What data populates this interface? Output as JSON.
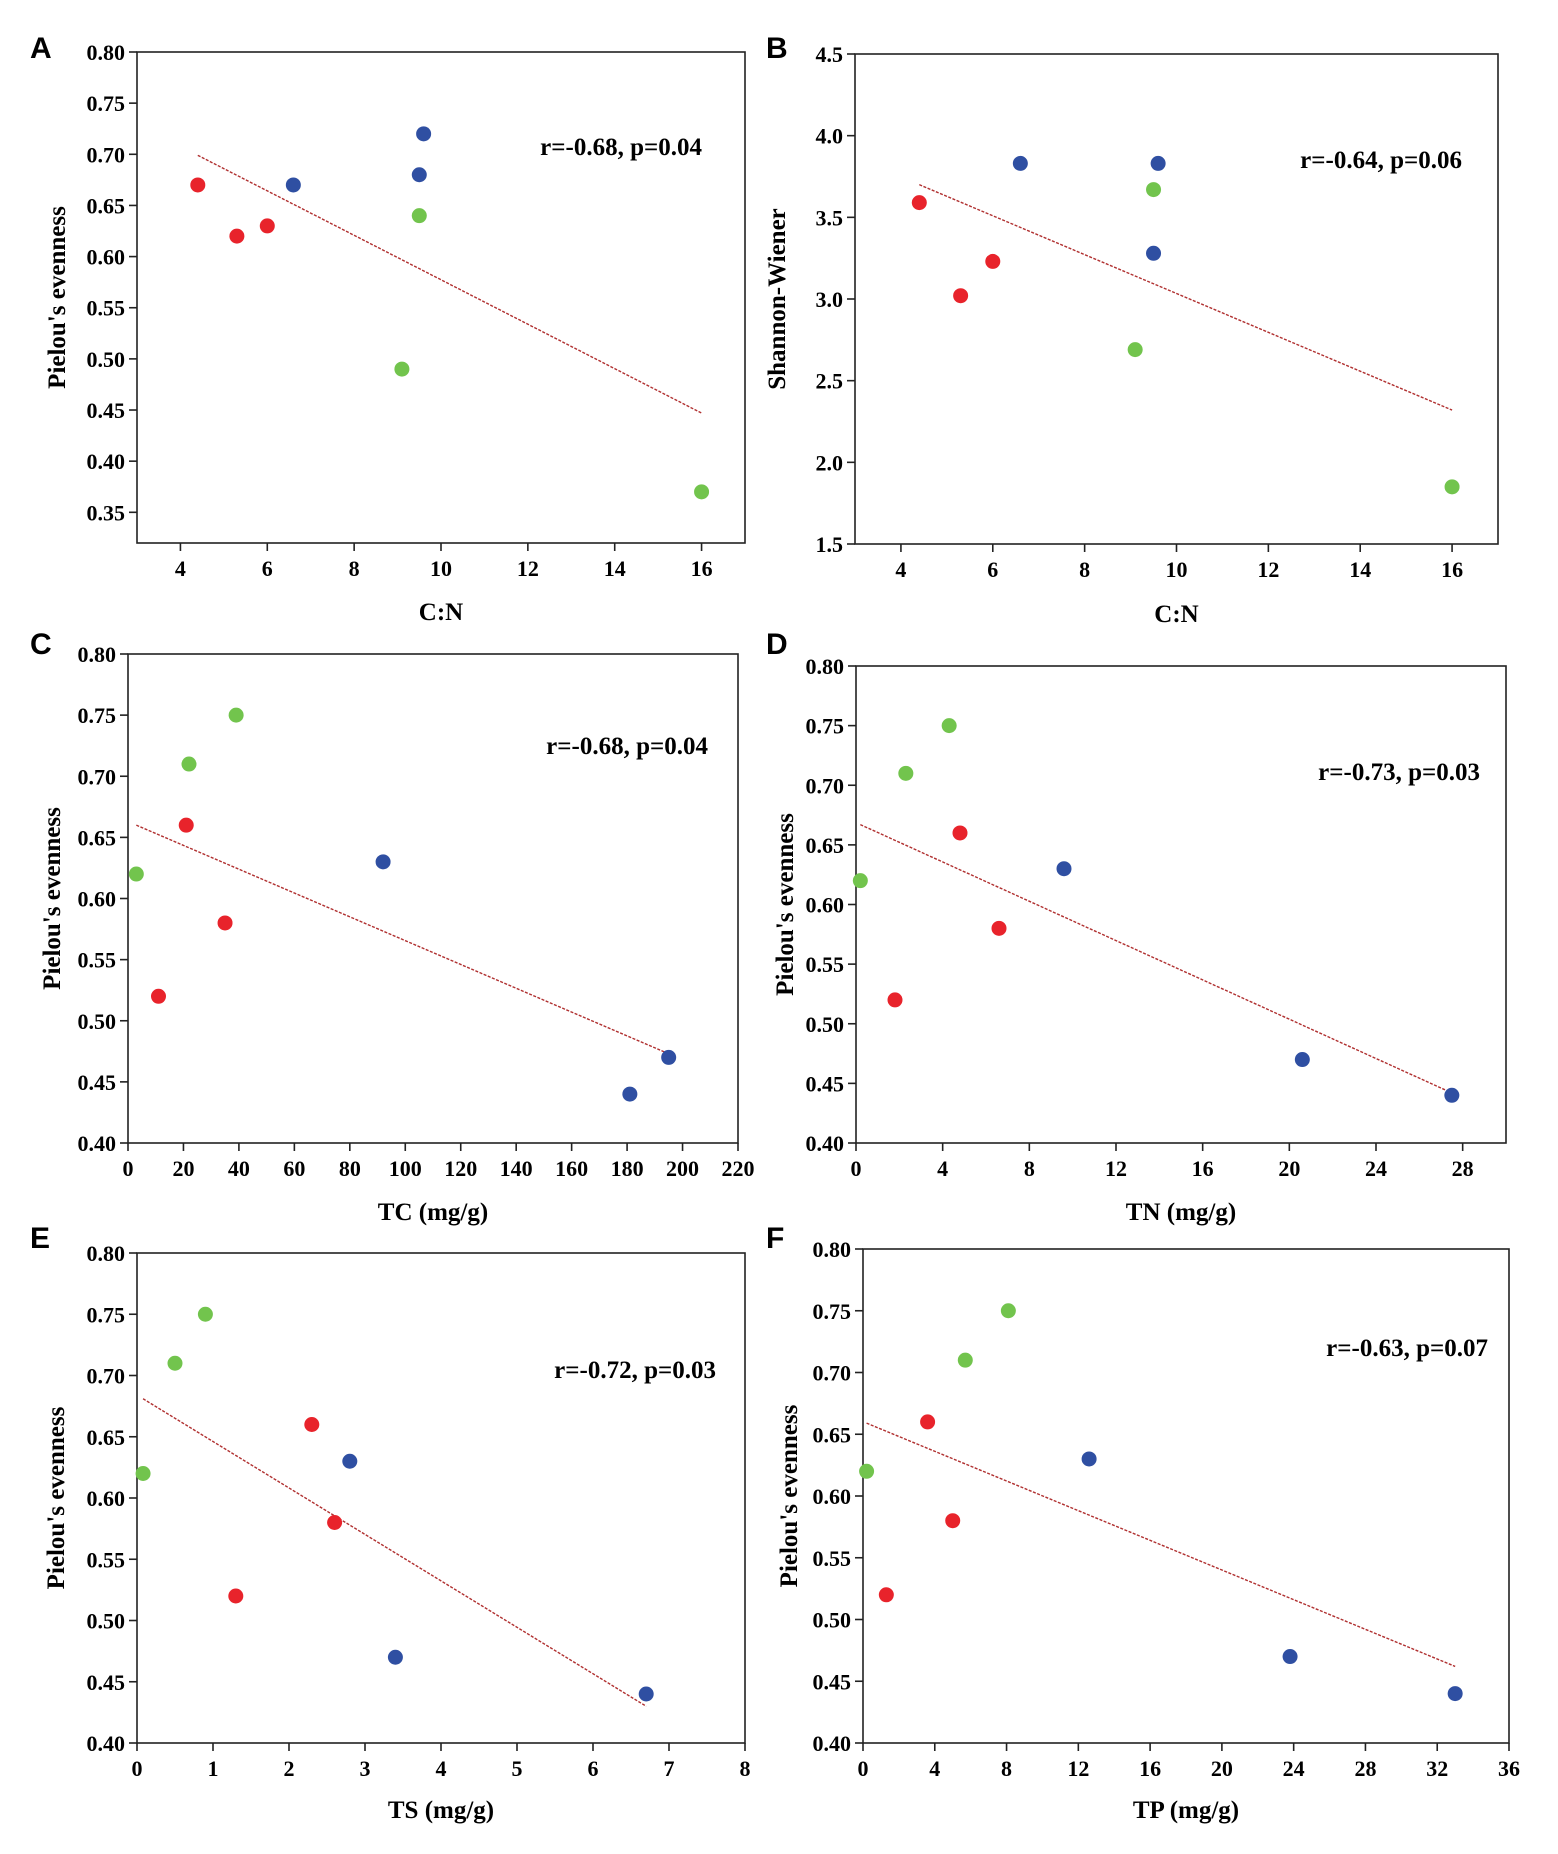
{
  "colors": {
    "red": "#e8232b",
    "blue": "#2f4fa2",
    "green": "#72c44d",
    "fit": "#b03030"
  },
  "chart_data": [
    {
      "panel": "A",
      "type": "scatter",
      "xlabel": "C:N",
      "ylabel": "Pielou's evenness",
      "xlim": [
        3,
        17
      ],
      "ylim": [
        0.32,
        0.8
      ],
      "xticks": [
        4,
        6,
        8,
        10,
        12,
        14,
        16
      ],
      "xtick_labels": [
        "4",
        "6",
        "8",
        "10",
        "12",
        "14",
        "16"
      ],
      "yticks": [
        0.35,
        0.4,
        0.45,
        0.5,
        0.55,
        0.6,
        0.65,
        0.7,
        0.75,
        0.8
      ],
      "ytick_labels": [
        "0.35",
        "0.40",
        "0.45",
        "0.50",
        "0.55",
        "0.60",
        "0.65",
        "0.70",
        "0.75",
        "0.80"
      ],
      "stat": "r=-0.68, p=0.04",
      "fit": [
        [
          4.4,
          0.699
        ],
        [
          16,
          0.447
        ]
      ],
      "series": [
        {
          "name": "red",
          "color": "red",
          "points": [
            [
              4.4,
              0.67
            ],
            [
              5.3,
              0.62
            ],
            [
              6.0,
              0.63
            ]
          ]
        },
        {
          "name": "blue",
          "color": "blue",
          "points": [
            [
              6.6,
              0.67
            ],
            [
              9.5,
              0.68
            ],
            [
              9.6,
              0.72
            ]
          ]
        },
        {
          "name": "green",
          "color": "green",
          "points": [
            [
              9.1,
              0.49
            ],
            [
              9.5,
              0.64
            ],
            [
              16.0,
              0.37
            ]
          ]
        }
      ]
    },
    {
      "panel": "B",
      "type": "scatter",
      "xlabel": "C:N",
      "ylabel": "Shannon-Wiener",
      "xlim": [
        3,
        17
      ],
      "ylim": [
        1.5,
        4.5
      ],
      "xticks": [
        4,
        6,
        8,
        10,
        12,
        14,
        16
      ],
      "xtick_labels": [
        "4",
        "6",
        "8",
        "10",
        "12",
        "14",
        "16"
      ],
      "yticks": [
        1.5,
        2.0,
        2.5,
        3.0,
        3.5,
        4.0,
        4.5
      ],
      "ytick_labels": [
        "1.5",
        "2.0",
        "2.5",
        "3.0",
        "3.5",
        "4.0",
        "4.5"
      ],
      "stat": "r=-0.64, p=0.06",
      "fit": [
        [
          4.4,
          3.7
        ],
        [
          16,
          2.32
        ]
      ],
      "series": [
        {
          "name": "red",
          "color": "red",
          "points": [
            [
              4.4,
              3.59
            ],
            [
              5.3,
              3.02
            ],
            [
              6.0,
              3.23
            ]
          ]
        },
        {
          "name": "blue",
          "color": "blue",
          "points": [
            [
              6.6,
              3.83
            ],
            [
              9.5,
              3.28
            ],
            [
              9.6,
              3.83
            ]
          ]
        },
        {
          "name": "green",
          "color": "green",
          "points": [
            [
              9.1,
              2.69
            ],
            [
              9.5,
              3.67
            ],
            [
              16.0,
              1.85
            ]
          ]
        }
      ]
    },
    {
      "panel": "C",
      "type": "scatter",
      "xlabel": "TC (mg/g)",
      "ylabel": "Pielou's evenness",
      "xlim": [
        0,
        220
      ],
      "ylim": [
        0.4,
        0.8
      ],
      "xticks": [
        0,
        20,
        40,
        60,
        80,
        100,
        120,
        140,
        160,
        180,
        200,
        220
      ],
      "xtick_labels": [
        "0",
        "20",
        "40",
        "60",
        "80",
        "100",
        "120",
        "140",
        "160",
        "180",
        "200",
        "220"
      ],
      "yticks": [
        0.4,
        0.45,
        0.5,
        0.55,
        0.6,
        0.65,
        0.7,
        0.75,
        0.8
      ],
      "ytick_labels": [
        "0.40",
        "0.45",
        "0.50",
        "0.55",
        "0.60",
        "0.65",
        "0.70",
        "0.75",
        "0.80"
      ],
      "stat": "r=-0.68, p=0.04",
      "fit": [
        [
          3,
          0.66
        ],
        [
          195,
          0.473
        ]
      ],
      "series": [
        {
          "name": "red",
          "color": "red",
          "points": [
            [
              11,
              0.52
            ],
            [
              21,
              0.66
            ],
            [
              35,
              0.58
            ]
          ]
        },
        {
          "name": "blue",
          "color": "blue",
          "points": [
            [
              92,
              0.63
            ],
            [
              181,
              0.44
            ],
            [
              195,
              0.47
            ]
          ]
        },
        {
          "name": "green",
          "color": "green",
          "points": [
            [
              3,
              0.62
            ],
            [
              22,
              0.71
            ],
            [
              39,
              0.75
            ]
          ]
        }
      ]
    },
    {
      "panel": "D",
      "type": "scatter",
      "xlabel": "TN (mg/g)",
      "ylabel": "Pielou's evenness",
      "xlim": [
        0,
        30
      ],
      "ylim": [
        0.4,
        0.8
      ],
      "xticks": [
        0,
        4,
        8,
        12,
        16,
        20,
        24,
        28
      ],
      "xtick_labels": [
        "0",
        "4",
        "8",
        "12",
        "16",
        "20",
        "24",
        "28"
      ],
      "yticks": [
        0.4,
        0.45,
        0.5,
        0.55,
        0.6,
        0.65,
        0.7,
        0.75,
        0.8
      ],
      "ytick_labels": [
        "0.40",
        "0.45",
        "0.50",
        "0.55",
        "0.60",
        "0.65",
        "0.70",
        "0.75",
        "0.80"
      ],
      "stat": "r=-0.73, p=0.03",
      "fit": [
        [
          0.2,
          0.667
        ],
        [
          27.5,
          0.442
        ]
      ],
      "series": [
        {
          "name": "red",
          "color": "red",
          "points": [
            [
              1.8,
              0.52
            ],
            [
              4.8,
              0.66
            ],
            [
              6.6,
              0.58
            ]
          ]
        },
        {
          "name": "blue",
          "color": "blue",
          "points": [
            [
              9.6,
              0.63
            ],
            [
              20.6,
              0.47
            ],
            [
              27.5,
              0.44
            ]
          ]
        },
        {
          "name": "green",
          "color": "green",
          "points": [
            [
              0.2,
              0.62
            ],
            [
              2.3,
              0.71
            ],
            [
              4.3,
              0.75
            ]
          ]
        }
      ]
    },
    {
      "panel": "E",
      "type": "scatter",
      "xlabel": "TS (mg/g)",
      "ylabel": "Pielou's evenness",
      "xlim": [
        0,
        8
      ],
      "ylim": [
        0.4,
        0.8
      ],
      "xticks": [
        0,
        1,
        2,
        3,
        4,
        5,
        6,
        7,
        8
      ],
      "xtick_labels": [
        "0",
        "1",
        "2",
        "3",
        "4",
        "5",
        "6",
        "7",
        "8"
      ],
      "yticks": [
        0.4,
        0.45,
        0.5,
        0.55,
        0.6,
        0.65,
        0.7,
        0.75,
        0.8
      ],
      "ytick_labels": [
        "0.40",
        "0.45",
        "0.50",
        "0.55",
        "0.60",
        "0.65",
        "0.70",
        "0.75",
        "0.80"
      ],
      "stat": "r=-0.72, p=0.03",
      "fit": [
        [
          0.08,
          0.681
        ],
        [
          6.7,
          0.43
        ]
      ],
      "series": [
        {
          "name": "red",
          "color": "red",
          "points": [
            [
              1.3,
              0.52
            ],
            [
              2.3,
              0.66
            ],
            [
              2.6,
              0.58
            ]
          ]
        },
        {
          "name": "blue",
          "color": "blue",
          "points": [
            [
              2.8,
              0.63
            ],
            [
              3.4,
              0.47
            ],
            [
              6.7,
              0.44
            ]
          ]
        },
        {
          "name": "green",
          "color": "green",
          "points": [
            [
              0.08,
              0.62
            ],
            [
              0.5,
              0.71
            ],
            [
              0.9,
              0.75
            ]
          ]
        }
      ]
    },
    {
      "panel": "F",
      "type": "scatter",
      "xlabel": "TP (mg/g)",
      "ylabel": "Pielou's evenness",
      "xlim": [
        0,
        36
      ],
      "ylim": [
        0.4,
        0.8
      ],
      "xticks": [
        0,
        4,
        8,
        12,
        16,
        20,
        24,
        28,
        32,
        36
      ],
      "xtick_labels": [
        "0",
        "4",
        "8",
        "12",
        "16",
        "20",
        "24",
        "28",
        "32",
        "36"
      ],
      "yticks": [
        0.4,
        0.45,
        0.5,
        0.55,
        0.6,
        0.65,
        0.7,
        0.75,
        0.8
      ],
      "ytick_labels": [
        "0.40",
        "0.45",
        "0.50",
        "0.55",
        "0.60",
        "0.65",
        "0.70",
        "0.75",
        "0.80"
      ],
      "stat": "r=-0.63, p=0.07",
      "fit": [
        [
          0.2,
          0.659
        ],
        [
          33,
          0.462
        ]
      ],
      "series": [
        {
          "name": "red",
          "color": "red",
          "points": [
            [
              1.3,
              0.52
            ],
            [
              3.6,
              0.66
            ],
            [
              5.0,
              0.58
            ]
          ]
        },
        {
          "name": "blue",
          "color": "blue",
          "points": [
            [
              12.6,
              0.63
            ],
            [
              23.8,
              0.47
            ],
            [
              33.0,
              0.44
            ]
          ]
        },
        {
          "name": "green",
          "color": "green",
          "points": [
            [
              0.2,
              0.62
            ],
            [
              5.7,
              0.71
            ],
            [
              8.1,
              0.75
            ]
          ]
        }
      ]
    }
  ]
}
